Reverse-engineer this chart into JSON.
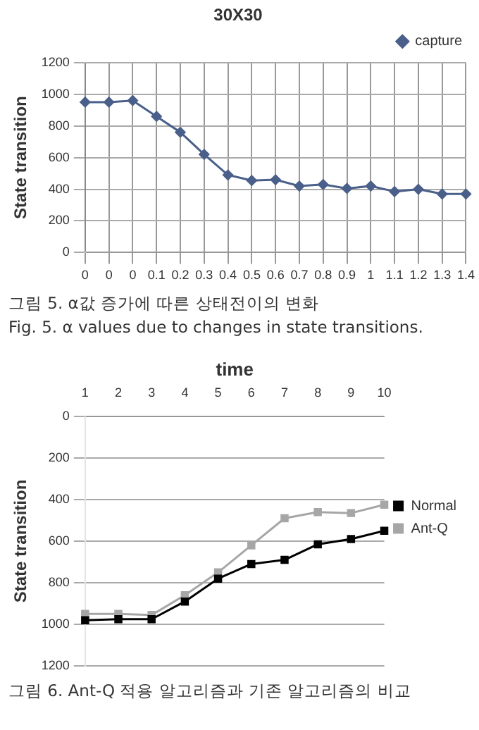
{
  "chart_data": [
    {
      "type": "line",
      "title": "30X30",
      "ylabel": "State transition",
      "categories": [
        "0",
        "0",
        "0",
        "0.1",
        "0.2",
        "0.3",
        "0.4",
        "0.5",
        "0.6",
        "0.7",
        "0.8",
        "0.9",
        "1",
        "1.1",
        "1.2",
        "1.3",
        "1.4"
      ],
      "series": [
        {
          "name": "capture",
          "color": "#4a5f8a",
          "values": [
            950,
            950,
            960,
            860,
            760,
            620,
            490,
            455,
            460,
            420,
            430,
            405,
            420,
            385,
            400,
            370,
            370
          ]
        }
      ],
      "ylim": [
        0,
        1200
      ],
      "yticks": [
        0,
        200,
        400,
        600,
        800,
        1000,
        1200
      ],
      "grid": true,
      "legend": "top right",
      "marker": "diamond",
      "line_style": "solid",
      "annotations": [
        "그림 5.  α값 증가에 따른 상태전이의 변화",
        "Fig.  5.  α values due to changes in state transitions."
      ]
    },
    {
      "type": "line",
      "x2label": "time",
      "ylabel": "State transition",
      "categories": [
        "1",
        "2",
        "3",
        "4",
        "5",
        "6",
        "7",
        "8",
        "9",
        "10"
      ],
      "series": [
        {
          "name": "Ant-Q",
          "color": "#a6a6a6",
          "values": [
            950,
            950,
            955,
            860,
            750,
            620,
            490,
            460,
            465,
            425
          ]
        },
        {
          "name": "Normal",
          "color": "#000000",
          "values": [
            980,
            975,
            975,
            890,
            780,
            710,
            690,
            615,
            590,
            550
          ]
        }
      ],
      "ylim": [
        1200,
        0
      ],
      "yticks": [
        0,
        200,
        400,
        600,
        800,
        1000,
        1200
      ],
      "grid": "y",
      "legend": "right",
      "marker": "square",
      "line_style": "solid",
      "annotations": [
        "그림  6.  Ant-Q 적용 알고리즘과 기존 알고리즘의 비교"
      ]
    }
  ]
}
